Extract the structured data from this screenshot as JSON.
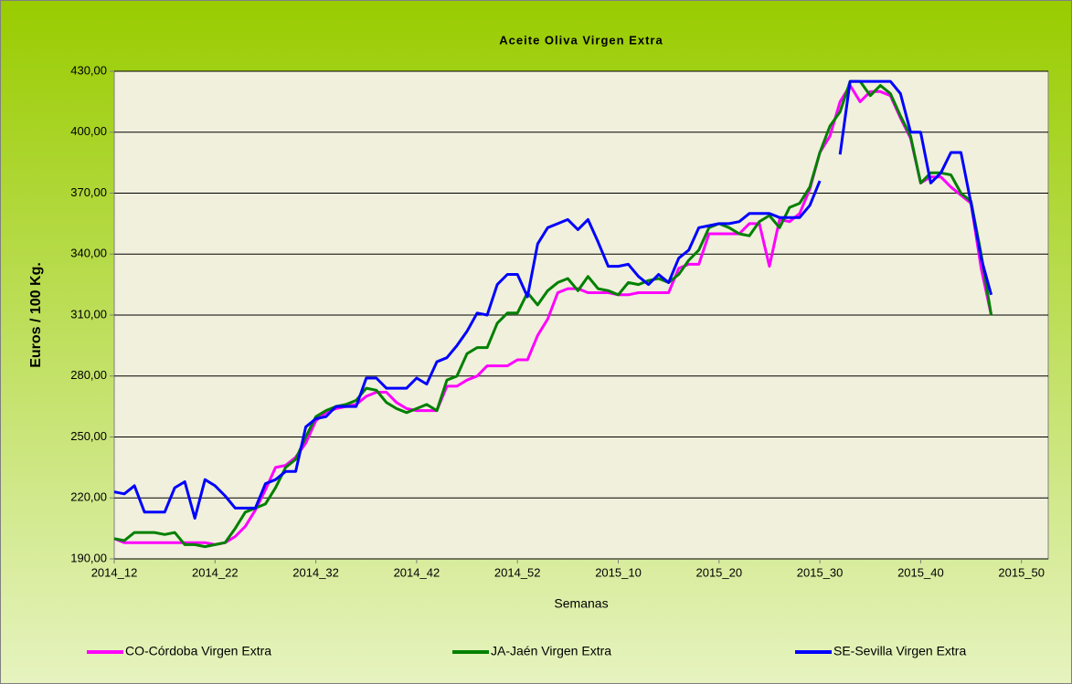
{
  "chart_data": {
    "type": "line",
    "title": "Aceite Oliva Virgen Extra",
    "x_label": "Semanas",
    "y_label": "Euros / 100 Kg.",
    "categories": [
      "2014_12",
      null,
      null,
      null,
      null,
      null,
      null,
      null,
      null,
      null,
      "2014_22",
      null,
      null,
      null,
      null,
      null,
      null,
      null,
      null,
      null,
      "2014_32",
      null,
      null,
      null,
      null,
      null,
      null,
      null,
      null,
      null,
      "2014_42",
      null,
      null,
      null,
      null,
      null,
      null,
      null,
      null,
      null,
      "2014_52",
      null,
      null,
      null,
      null,
      null,
      null,
      null,
      null,
      null,
      "2015_10",
      null,
      null,
      null,
      null,
      null,
      null,
      null,
      null,
      null,
      "2015_20",
      null,
      null,
      null,
      null,
      null,
      null,
      null,
      null,
      null,
      "2015_30",
      null,
      null,
      null,
      null,
      null,
      null,
      null,
      null,
      null,
      "2015_40",
      null,
      null,
      null,
      null,
      null,
      null,
      null,
      null,
      null,
      "2015_50",
      null,
      null
    ],
    "ylim": [
      190,
      430
    ],
    "yticks": [
      {
        "value": 190,
        "label": "190,00"
      },
      {
        "value": 220,
        "label": "220,00"
      },
      {
        "value": 250,
        "label": "250,00"
      },
      {
        "value": 280,
        "label": "280,00"
      },
      {
        "value": 310,
        "label": "310,00"
      },
      {
        "value": 340,
        "label": "340,00"
      },
      {
        "value": 370,
        "label": "370,00"
      },
      {
        "value": 400,
        "label": "400,00"
      },
      {
        "value": 430,
        "label": "430,00"
      }
    ],
    "grid": true,
    "legend": "bottom",
    "series": [
      {
        "name": "CO-Córdoba Virgen Extra",
        "color": "#ff00ff",
        "values": [
          200,
          198,
          198,
          198,
          198,
          198,
          198,
          198,
          198,
          198,
          197,
          198,
          201,
          206,
          214,
          224,
          235,
          236,
          240,
          247,
          258,
          262,
          264,
          265,
          266,
          270,
          272,
          272,
          267,
          264,
          263,
          263,
          263,
          275,
          275,
          278,
          280,
          285,
          285,
          285,
          288,
          288,
          300,
          308,
          321,
          323,
          323,
          321,
          321,
          321,
          320,
          320,
          321,
          321,
          321,
          321,
          333,
          335,
          335,
          350,
          350,
          350,
          350,
          355,
          355,
          334,
          357,
          356,
          360,
          372,
          390,
          398,
          415,
          423,
          415,
          420,
          420,
          418,
          407,
          397,
          375,
          378,
          378,
          373,
          369,
          365,
          333,
          310,
          null,
          null,
          null,
          null,
          null
        ]
      },
      {
        "name": "JA-Jaén Virgen Extra",
        "color": "#008000",
        "values": [
          200,
          199,
          203,
          203,
          203,
          202,
          203,
          197,
          197,
          196,
          197,
          198,
          205,
          213,
          215,
          217,
          225,
          235,
          239,
          250,
          260,
          263,
          265,
          266,
          268,
          274,
          273,
          267,
          264,
          262,
          264,
          266,
          263,
          278,
          280,
          291,
          294,
          294,
          306,
          311,
          311,
          321,
          315,
          322,
          326,
          328,
          322,
          329,
          323,
          322,
          320,
          326,
          325,
          327,
          328,
          326,
          330,
          337,
          342,
          353,
          355,
          353,
          350,
          349,
          356,
          359,
          353,
          363,
          365,
          373,
          390,
          403,
          410,
          425,
          425,
          418,
          423,
          419,
          408,
          398,
          375,
          380,
          380,
          379,
          370,
          366,
          340,
          310,
          null,
          null,
          null,
          null,
          null
        ]
      },
      {
        "name": "SE-Sevilla Virgen Extra",
        "color": "#0000ff",
        "values": [
          223,
          222,
          226,
          213,
          213,
          213,
          225,
          228,
          210,
          229,
          226,
          221,
          215,
          215,
          215,
          227,
          229,
          233,
          233,
          255,
          259,
          260,
          265,
          265,
          265,
          279,
          279,
          274,
          274,
          274,
          279,
          276,
          287,
          289,
          295,
          302,
          311,
          310,
          325,
          330,
          330,
          319,
          345,
          353,
          355,
          357,
          352,
          357,
          346,
          334,
          334,
          335,
          329,
          325,
          330,
          326,
          338,
          342,
          353,
          354,
          355,
          355,
          356,
          360,
          360,
          360,
          358,
          358,
          358,
          364,
          376,
          null,
          389,
          425,
          425,
          425,
          425,
          425,
          419,
          400,
          400,
          375,
          380,
          390,
          390,
          365,
          338,
          320,
          null,
          null,
          null,
          null,
          null
        ]
      }
    ]
  }
}
